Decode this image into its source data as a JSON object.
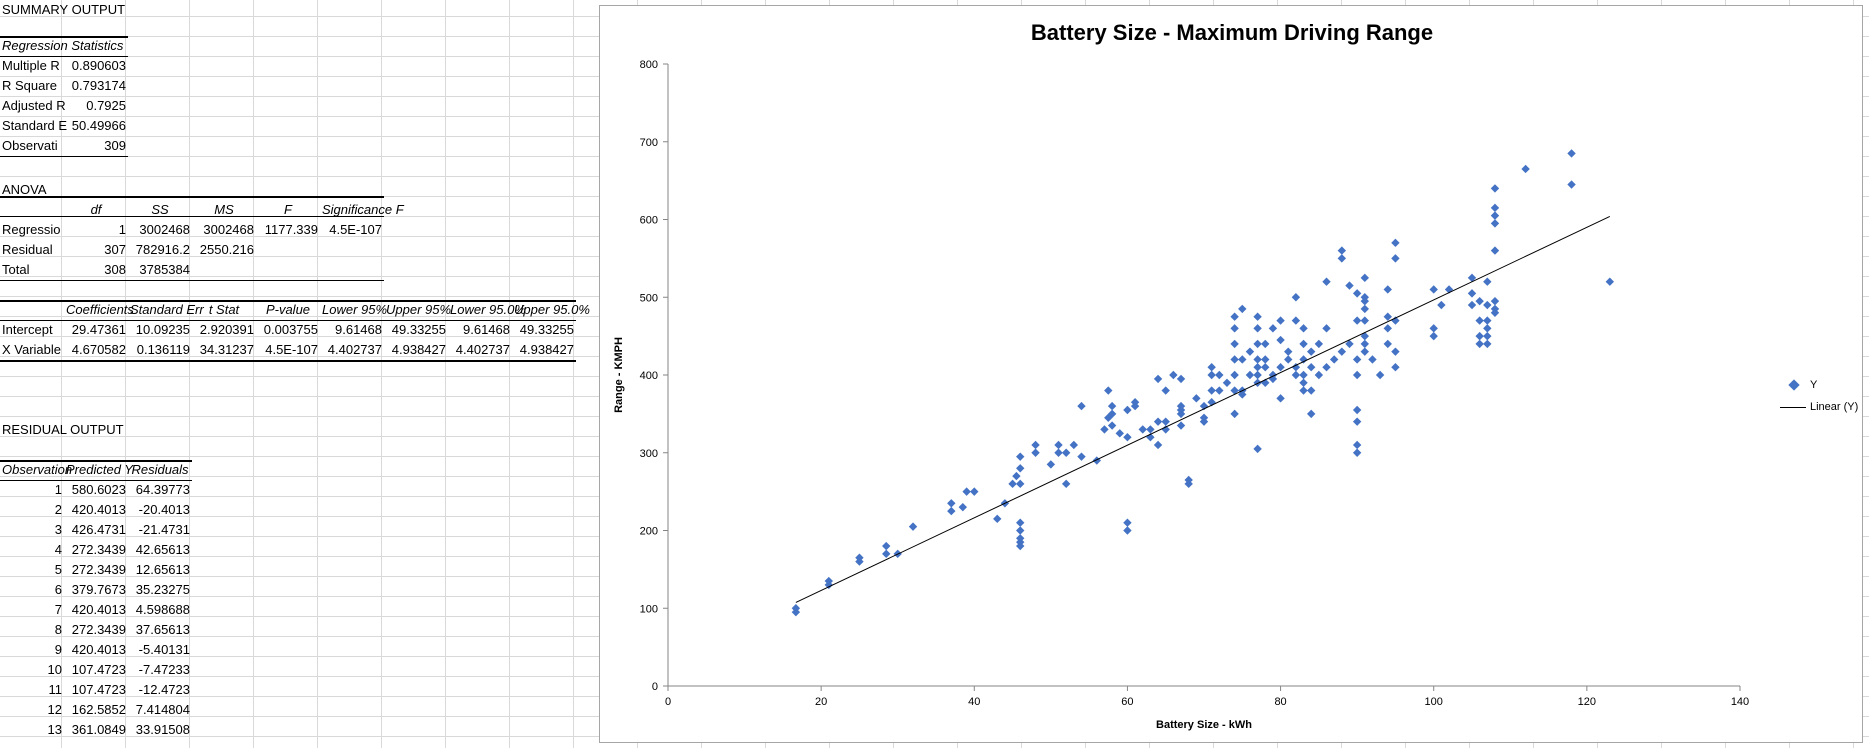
{
  "sheet": {
    "summary_output": "SUMMARY OUTPUT",
    "regression_statistics": "Regression Statistics",
    "reg_stats": [
      {
        "label": "Multiple R",
        "value": "0.890603"
      },
      {
        "label": "R Square",
        "value": "0.793174"
      },
      {
        "label": "Adjusted R",
        "value": "0.7925"
      },
      {
        "label": "Standard E",
        "value": "50.49966"
      },
      {
        "label": "Observati",
        "value": "309"
      }
    ],
    "anova_title": "ANOVA",
    "anova_headers": [
      "df",
      "SS",
      "MS",
      "F",
      "Significance F"
    ],
    "anova_rows": [
      {
        "label": "Regressio",
        "df": "1",
        "ss": "3002468",
        "ms": "3002468",
        "f": "1177.339",
        "sig": "4.5E-107"
      },
      {
        "label": "Residual",
        "df": "307",
        "ss": "782916.2",
        "ms": "2550.216",
        "f": "",
        "sig": ""
      },
      {
        "label": "Total",
        "df": "308",
        "ss": "3785384",
        "ms": "",
        "f": "",
        "sig": ""
      }
    ],
    "coef_headers": [
      "Coefficients",
      "Standard Err",
      "t Stat",
      "P-value",
      "Lower 95%",
      "Upper 95%",
      "Lower 95.0%",
      "Upper 95.0%"
    ],
    "coef_rows": [
      {
        "label": "Intercept",
        "vals": [
          "29.47361",
          "10.09235",
          "2.920391",
          "0.003755",
          "9.61468",
          "49.33255",
          "9.61468",
          "49.33255"
        ]
      },
      {
        "label": "X Variable",
        "vals": [
          "4.670582",
          "0.136119",
          "34.31237",
          "4.5E-107",
          "4.402737",
          "4.938427",
          "4.402737",
          "4.938427"
        ]
      }
    ],
    "residual_output": "RESIDUAL OUTPUT",
    "residual_headers": [
      "Observation",
      "Predicted Y",
      "Residuals"
    ],
    "residual_rows": [
      [
        "1",
        "580.6023",
        "64.39773"
      ],
      [
        "2",
        "420.4013",
        "-20.4013"
      ],
      [
        "3",
        "426.4731",
        "-21.4731"
      ],
      [
        "4",
        "272.3439",
        "42.65613"
      ],
      [
        "5",
        "272.3439",
        "12.65613"
      ],
      [
        "6",
        "379.7673",
        "35.23275"
      ],
      [
        "7",
        "420.4013",
        "4.598688"
      ],
      [
        "8",
        "272.3439",
        "37.65613"
      ],
      [
        "9",
        "420.4013",
        "-5.40131"
      ],
      [
        "10",
        "107.4723",
        "-7.47233"
      ],
      [
        "11",
        "107.4723",
        "-12.4723"
      ],
      [
        "12",
        "162.5852",
        "7.414804"
      ],
      [
        "13",
        "361.0849",
        "33.91508"
      ]
    ]
  },
  "chart_data": {
    "type": "scatter",
    "title": "Battery Size - Maximum Driving Range",
    "xlabel": "Battery Size - kWh",
    "ylabel": "Range - KMPH",
    "xlim": [
      0,
      140
    ],
    "ylim": [
      0,
      800
    ],
    "xticks": [
      0,
      20,
      40,
      60,
      80,
      100,
      120,
      140
    ],
    "yticks": [
      0,
      100,
      200,
      300,
      400,
      500,
      600,
      700,
      800
    ],
    "legend_position": "right",
    "colors": {
      "marker": "#4472c4",
      "trendline": "#000000"
    },
    "series": [
      {
        "name": "Y",
        "points": [
          [
            16.7,
            100
          ],
          [
            16.7,
            95
          ],
          [
            21,
            130
          ],
          [
            21,
            135
          ],
          [
            25,
            160
          ],
          [
            25,
            165
          ],
          [
            28.5,
            170
          ],
          [
            28.5,
            180
          ],
          [
            30,
            170
          ],
          [
            32,
            205
          ],
          [
            37,
            225
          ],
          [
            37,
            235
          ],
          [
            38.5,
            230
          ],
          [
            39,
            250
          ],
          [
            40,
            250
          ],
          [
            43,
            215
          ],
          [
            44,
            235
          ],
          [
            45,
            260
          ],
          [
            45.5,
            270
          ],
          [
            46,
            180
          ],
          [
            46,
            185
          ],
          [
            46,
            190
          ],
          [
            46,
            200
          ],
          [
            46,
            210
          ],
          [
            46,
            260
          ],
          [
            46,
            280
          ],
          [
            46,
            295
          ],
          [
            48,
            300
          ],
          [
            48,
            310
          ],
          [
            50,
            285
          ],
          [
            51,
            300
          ],
          [
            51,
            310
          ],
          [
            52,
            260
          ],
          [
            52,
            300
          ],
          [
            53,
            310
          ],
          [
            54,
            295
          ],
          [
            54,
            360
          ],
          [
            56,
            290
          ],
          [
            57,
            330
          ],
          [
            57.5,
            345
          ],
          [
            57.5,
            380
          ],
          [
            58,
            335
          ],
          [
            58,
            350
          ],
          [
            58,
            360
          ],
          [
            59,
            325
          ],
          [
            60,
            200
          ],
          [
            60,
            210
          ],
          [
            60,
            320
          ],
          [
            60,
            355
          ],
          [
            61,
            360
          ],
          [
            61,
            365
          ],
          [
            62,
            330
          ],
          [
            63,
            320
          ],
          [
            63,
            330
          ],
          [
            64,
            310
          ],
          [
            64,
            340
          ],
          [
            64,
            395
          ],
          [
            65,
            330
          ],
          [
            65,
            340
          ],
          [
            65,
            380
          ],
          [
            66,
            400
          ],
          [
            67,
            335
          ],
          [
            67,
            350
          ],
          [
            67,
            355
          ],
          [
            67,
            360
          ],
          [
            67,
            395
          ],
          [
            68,
            260
          ],
          [
            68,
            265
          ],
          [
            69,
            370
          ],
          [
            70,
            340
          ],
          [
            70,
            345
          ],
          [
            70,
            360
          ],
          [
            71,
            365
          ],
          [
            71,
            380
          ],
          [
            71,
            400
          ],
          [
            71,
            410
          ],
          [
            72,
            380
          ],
          [
            72,
            400
          ],
          [
            73,
            390
          ],
          [
            74,
            350
          ],
          [
            74,
            380
          ],
          [
            74,
            400
          ],
          [
            74,
            420
          ],
          [
            74,
            440
          ],
          [
            74,
            460
          ],
          [
            74,
            475
          ],
          [
            75,
            375
          ],
          [
            75,
            380
          ],
          [
            75,
            420
          ],
          [
            75,
            485
          ],
          [
            76,
            400
          ],
          [
            76,
            430
          ],
          [
            77,
            305
          ],
          [
            77,
            390
          ],
          [
            77,
            400
          ],
          [
            77,
            410
          ],
          [
            77,
            420
          ],
          [
            77,
            440
          ],
          [
            77,
            460
          ],
          [
            77,
            475
          ],
          [
            78,
            390
          ],
          [
            78,
            410
          ],
          [
            78,
            420
          ],
          [
            78,
            440
          ],
          [
            79,
            395
          ],
          [
            79,
            400
          ],
          [
            79,
            460
          ],
          [
            80,
            370
          ],
          [
            80,
            410
          ],
          [
            80,
            445
          ],
          [
            80,
            470
          ],
          [
            81,
            420
          ],
          [
            81,
            430
          ],
          [
            82,
            400
          ],
          [
            82,
            410
          ],
          [
            82,
            470
          ],
          [
            82,
            500
          ],
          [
            83,
            380
          ],
          [
            83,
            390
          ],
          [
            83,
            400
          ],
          [
            83,
            420
          ],
          [
            83,
            440
          ],
          [
            83,
            460
          ],
          [
            84,
            350
          ],
          [
            84,
            380
          ],
          [
            84,
            410
          ],
          [
            84,
            430
          ],
          [
            85,
            400
          ],
          [
            85,
            440
          ],
          [
            86,
            410
          ],
          [
            86,
            460
          ],
          [
            86,
            520
          ],
          [
            87,
            420
          ],
          [
            88,
            430
          ],
          [
            88,
            550
          ],
          [
            88,
            560
          ],
          [
            89,
            440
          ],
          [
            89,
            515
          ],
          [
            90,
            300
          ],
          [
            90,
            310
          ],
          [
            90,
            340
          ],
          [
            90,
            355
          ],
          [
            90,
            400
          ],
          [
            90,
            420
          ],
          [
            90,
            470
          ],
          [
            90,
            505
          ],
          [
            91,
            430
          ],
          [
            91,
            440
          ],
          [
            91,
            450
          ],
          [
            91,
            470
          ],
          [
            91,
            485
          ],
          [
            91,
            495
          ],
          [
            91,
            500
          ],
          [
            91,
            525
          ],
          [
            92,
            420
          ],
          [
            93,
            400
          ],
          [
            94,
            440
          ],
          [
            94,
            460
          ],
          [
            94,
            475
          ],
          [
            94,
            510
          ],
          [
            95,
            410
          ],
          [
            95,
            430
          ],
          [
            95,
            470
          ],
          [
            95,
            550
          ],
          [
            95,
            570
          ],
          [
            100,
            450
          ],
          [
            100,
            460
          ],
          [
            100,
            510
          ],
          [
            101,
            490
          ],
          [
            102,
            510
          ],
          [
            105,
            490
          ],
          [
            105,
            505
          ],
          [
            105,
            525
          ],
          [
            106,
            440
          ],
          [
            106,
            450
          ],
          [
            106,
            470
          ],
          [
            106,
            495
          ],
          [
            107,
            440
          ],
          [
            107,
            450
          ],
          [
            107,
            460
          ],
          [
            107,
            470
          ],
          [
            107,
            490
          ],
          [
            107,
            520
          ],
          [
            108,
            560
          ],
          [
            108,
            595
          ],
          [
            108,
            605
          ],
          [
            108,
            615
          ],
          [
            108,
            640
          ],
          [
            108,
            480
          ],
          [
            108,
            485
          ],
          [
            108,
            495
          ],
          [
            112,
            665
          ],
          [
            118,
            645
          ],
          [
            118,
            685
          ],
          [
            123,
            520
          ]
        ]
      },
      {
        "name": "Linear (Y)",
        "line": [
          [
            16.7,
            107.5
          ],
          [
            123,
            604
          ]
        ]
      }
    ]
  }
}
